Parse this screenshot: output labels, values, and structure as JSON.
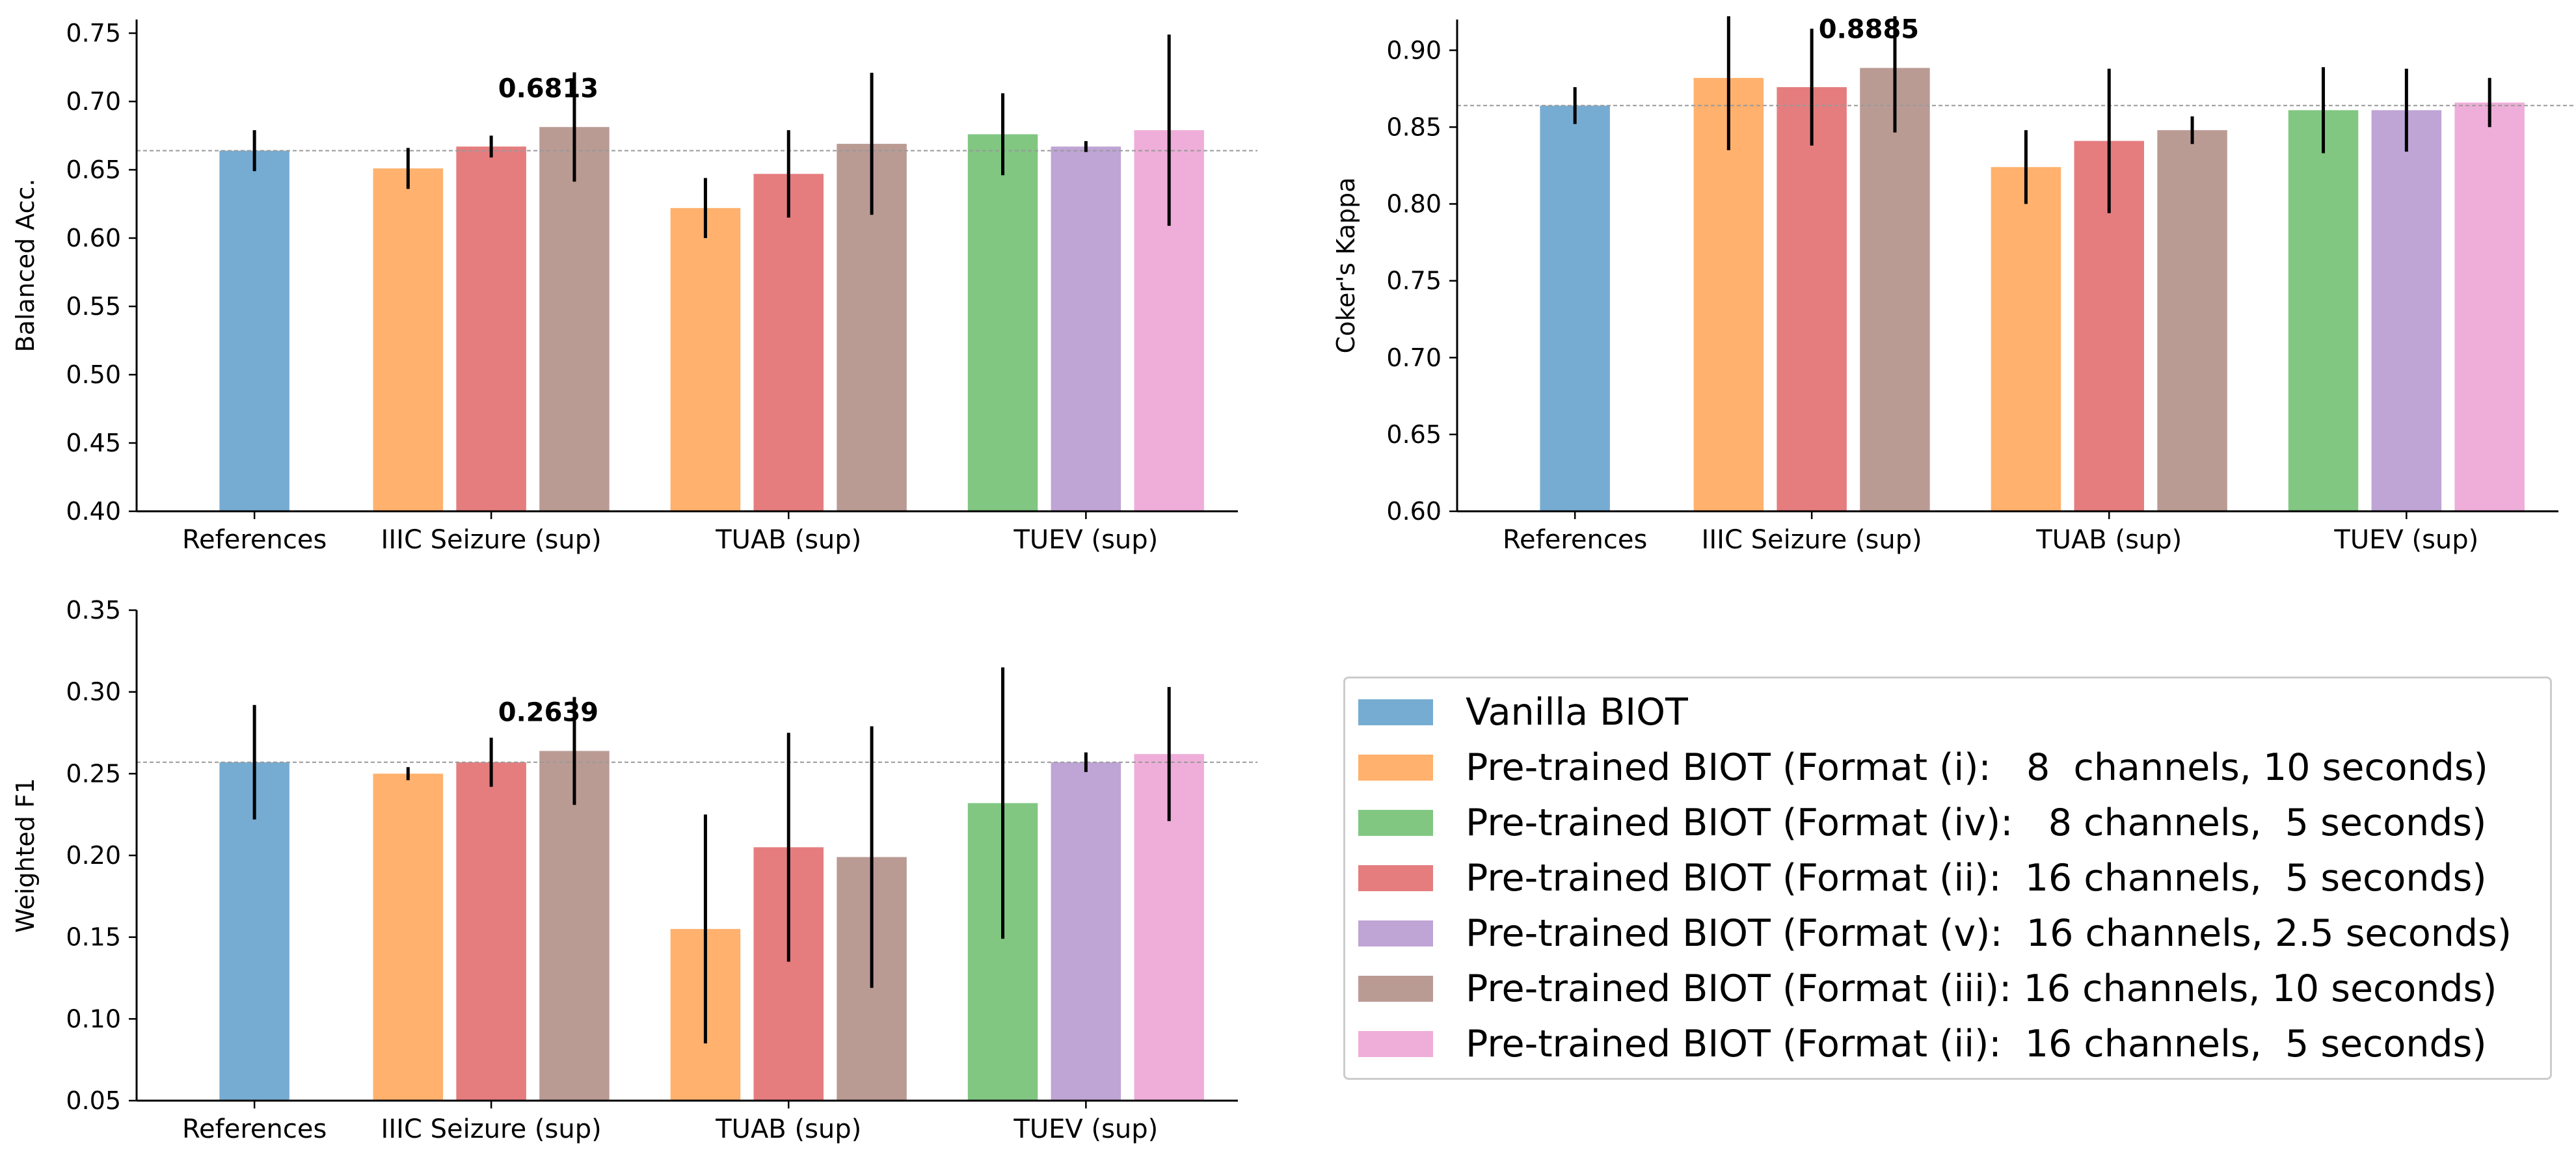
{
  "colors": {
    "vanilla": "#77acd2",
    "fmt_i": "#ffb16d",
    "fmt_iv": "#81c782",
    "fmt_ii": "#e57d7f",
    "fmt_v": "#bfa4d6",
    "fmt_iii": "#ba9b94",
    "fmt_ii_pink": "#efaed9",
    "reference_line": "#999999",
    "error_bar": "#000000"
  },
  "legend": [
    {
      "label": "Vanilla BIOT",
      "color_key": "vanilla"
    },
    {
      "label": "Pre-trained BIOT (Format (i):   8  channels, 10 seconds)",
      "color_key": "fmt_i"
    },
    {
      "label": "Pre-trained BIOT (Format (iv):   8 channels,  5 seconds)",
      "color_key": "fmt_iv"
    },
    {
      "label": "Pre-trained BIOT (Format (ii):  16 channels,  5 seconds)",
      "color_key": "fmt_ii"
    },
    {
      "label": "Pre-trained BIOT (Format (v):  16 channels, 2.5 seconds)",
      "color_key": "fmt_v"
    },
    {
      "label": "Pre-trained BIOT (Format (iii): 16 channels, 10 seconds)",
      "color_key": "fmt_iii"
    },
    {
      "label": "Pre-trained BIOT (Format (ii):  16 channels,  5 seconds)",
      "color_key": "fmt_ii_pink"
    }
  ],
  "chart_data": [
    {
      "type": "bar",
      "id": "balanced-acc",
      "ylabel": "Balanced Acc.",
      "ylim": [
        0.4,
        0.76
      ],
      "yticks": [
        "0.40",
        "0.45",
        "0.50",
        "0.55",
        "0.60",
        "0.65",
        "0.70",
        "0.75"
      ],
      "reference_line": 0.664,
      "categories": [
        "References",
        "IIIC Seizure (sup)",
        "TUAB (sup)",
        "TUEV (sup)"
      ],
      "groups": [
        {
          "category": "References",
          "bars": [
            {
              "series": "Vanilla BIOT",
              "color_key": "vanilla",
              "value": 0.664,
              "err": 0.015
            }
          ]
        },
        {
          "category": "IIIC Seizure (sup)",
          "bars": [
            {
              "series": "Format (i)",
              "color_key": "fmt_i",
              "value": 0.651,
              "err": 0.015
            },
            {
              "series": "Format (ii)",
              "color_key": "fmt_ii",
              "value": 0.667,
              "err": 0.008
            },
            {
              "series": "Format (iii)",
              "color_key": "fmt_iii",
              "value": 0.6813,
              "err": 0.04
            }
          ]
        },
        {
          "category": "TUAB (sup)",
          "bars": [
            {
              "series": "Format (i)",
              "color_key": "fmt_i",
              "value": 0.622,
              "err": 0.022
            },
            {
              "series": "Format (ii)",
              "color_key": "fmt_ii",
              "value": 0.647,
              "err": 0.032
            },
            {
              "series": "Format (iii)",
              "color_key": "fmt_iii",
              "value": 0.669,
              "err": 0.052
            }
          ]
        },
        {
          "category": "TUEV (sup)",
          "bars": [
            {
              "series": "Format (iv)",
              "color_key": "fmt_iv",
              "value": 0.676,
              "err": 0.03
            },
            {
              "series": "Format (v)",
              "color_key": "fmt_v",
              "value": 0.667,
              "err": 0.004
            },
            {
              "series": "Format (ii)",
              "color_key": "fmt_ii_pink",
              "value": 0.679,
              "err": 0.07
            }
          ]
        }
      ],
      "annotation": {
        "text": "0.6813",
        "category": "IIIC Seizure (sup)",
        "bar_index": 2
      }
    },
    {
      "type": "bar",
      "id": "cohens-kappa",
      "ylabel": "Coker's Kappa",
      "ylim": [
        0.6,
        0.92
      ],
      "yticks": [
        "0.60",
        "0.65",
        "0.70",
        "0.75",
        "0.80",
        "0.85",
        "0.90"
      ],
      "reference_line": 0.864,
      "categories": [
        "References",
        "IIIC Seizure (sup)",
        "TUAB (sup)",
        "TUEV (sup)"
      ],
      "groups": [
        {
          "category": "References",
          "bars": [
            {
              "series": "Vanilla BIOT",
              "color_key": "vanilla",
              "value": 0.864,
              "err": 0.012
            }
          ]
        },
        {
          "category": "IIIC Seizure (sup)",
          "bars": [
            {
              "series": "Format (i)",
              "color_key": "fmt_i",
              "value": 0.882,
              "err": 0.047
            },
            {
              "series": "Format (ii)",
              "color_key": "fmt_ii",
              "value": 0.876,
              "err": 0.038
            },
            {
              "series": "Format (iii)",
              "color_key": "fmt_iii",
              "value": 0.8885,
              "err": 0.042
            }
          ]
        },
        {
          "category": "TUAB (sup)",
          "bars": [
            {
              "series": "Format (i)",
              "color_key": "fmt_i",
              "value": 0.824,
              "err": 0.024
            },
            {
              "series": "Format (ii)",
              "color_key": "fmt_ii",
              "value": 0.841,
              "err": 0.047
            },
            {
              "series": "Format (iii)",
              "color_key": "fmt_iii",
              "value": 0.848,
              "err": 0.009
            }
          ]
        },
        {
          "category": "TUEV (sup)",
          "bars": [
            {
              "series": "Format (iv)",
              "color_key": "fmt_iv",
              "value": 0.861,
              "err": 0.028
            },
            {
              "series": "Format (v)",
              "color_key": "fmt_v",
              "value": 0.861,
              "err": 0.027
            },
            {
              "series": "Format (ii)",
              "color_key": "fmt_ii_pink",
              "value": 0.866,
              "err": 0.016
            }
          ]
        }
      ],
      "annotation": {
        "text": "0.8885",
        "category": "IIIC Seizure (sup)",
        "bar_index": 2
      }
    },
    {
      "type": "bar",
      "id": "weighted-f1",
      "ylabel": "Weighted F1",
      "ylim": [
        0.05,
        0.35
      ],
      "yticks": [
        "0.05",
        "0.10",
        "0.15",
        "0.20",
        "0.25",
        "0.30",
        "0.35"
      ],
      "reference_line": 0.257,
      "categories": [
        "References",
        "IIIC Seizure (sup)",
        "TUAB (sup)",
        "TUEV (sup)"
      ],
      "groups": [
        {
          "category": "References",
          "bars": [
            {
              "series": "Vanilla BIOT",
              "color_key": "vanilla",
              "value": 0.257,
              "err": 0.035
            }
          ]
        },
        {
          "category": "IIIC Seizure (sup)",
          "bars": [
            {
              "series": "Format (i)",
              "color_key": "fmt_i",
              "value": 0.25,
              "err": 0.004
            },
            {
              "series": "Format (ii)",
              "color_key": "fmt_ii",
              "value": 0.257,
              "err": 0.015
            },
            {
              "series": "Format (iii)",
              "color_key": "fmt_iii",
              "value": 0.2639,
              "err": 0.033
            }
          ]
        },
        {
          "category": "TUAB (sup)",
          "bars": [
            {
              "series": "Format (i)",
              "color_key": "fmt_i",
              "value": 0.155,
              "err": 0.07
            },
            {
              "series": "Format (ii)",
              "color_key": "fmt_ii",
              "value": 0.205,
              "err": 0.07
            },
            {
              "series": "Format (iii)",
              "color_key": "fmt_iii",
              "value": 0.199,
              "err": 0.08
            }
          ]
        },
        {
          "category": "TUEV (sup)",
          "bars": [
            {
              "series": "Format (iv)",
              "color_key": "fmt_iv",
              "value": 0.232,
              "err": 0.083
            },
            {
              "series": "Format (v)",
              "color_key": "fmt_v",
              "value": 0.257,
              "err": 0.006
            },
            {
              "series": "Format (ii)",
              "color_key": "fmt_ii_pink",
              "value": 0.262,
              "err": 0.041
            }
          ]
        }
      ],
      "annotation": {
        "text": "0.2639",
        "category": "IIIC Seizure (sup)",
        "bar_index": 2
      }
    }
  ]
}
